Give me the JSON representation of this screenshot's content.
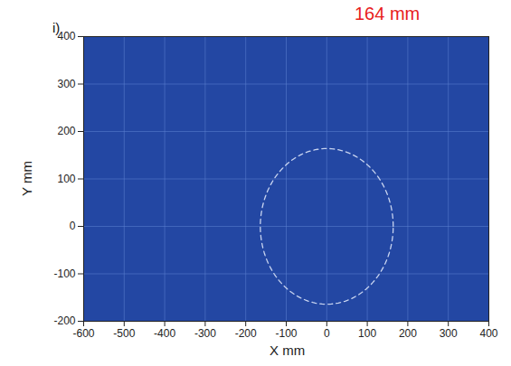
{
  "chart_data": {
    "type": "field",
    "title": "i)",
    "xlabel": "X mm",
    "ylabel": "Y mm",
    "xlim": [
      -600,
      400
    ],
    "ylim": [
      -200,
      400
    ],
    "xticks": [
      -600,
      -500,
      -400,
      -300,
      -200,
      -100,
      0,
      100,
      200,
      300,
      400
    ],
    "yticks": [
      -200,
      -100,
      0,
      100,
      200,
      300,
      400
    ],
    "grid": true,
    "color": "#2347a3",
    "circle": {
      "center": [
        0,
        0
      ],
      "radius": 164,
      "line_style": "dashed",
      "color": "#c8d4f0"
    },
    "annotations": [
      {
        "text": "164 mm",
        "color": "#e8201c"
      }
    ]
  }
}
